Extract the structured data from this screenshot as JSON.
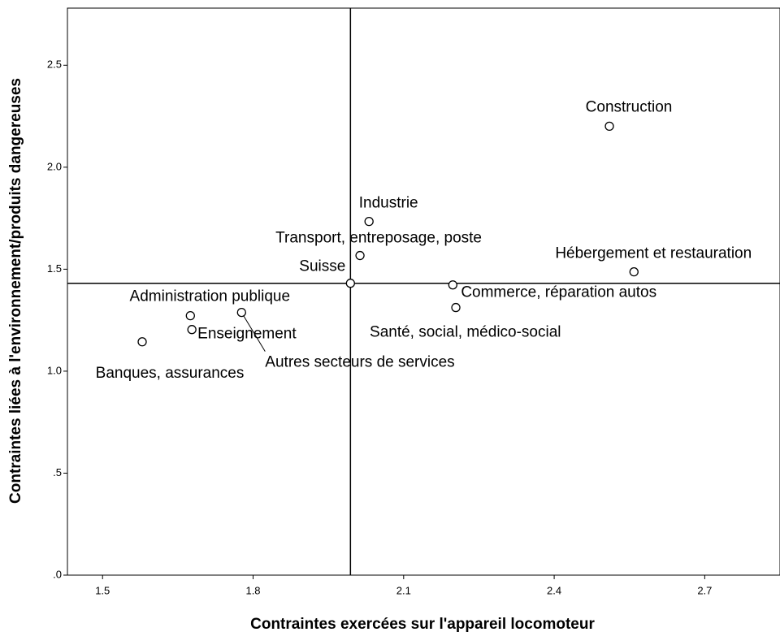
{
  "chart_data": {
    "type": "scatter",
    "x_label": "Contraintes exercées sur l'appareil locomoteur",
    "y_label": "Contraintes liées à l'environnement/produits dangereuses",
    "labels": [
      "Construction",
      "Industrie",
      "Transport, entreposage, poste",
      "Suisse",
      "Hébergement et restauration",
      "Commerce, réparation autos",
      "Santé, social, médico-social",
      "Administration publique",
      "Enseignement",
      "Autres secteurs de services",
      "Banques, assurances"
    ],
    "x": [
      2.51,
      2.031,
      2.013,
      1.994,
      2.559,
      2.198,
      2.204,
      1.675,
      1.678,
      1.777,
      1.579
    ],
    "values": [
      2.201,
      1.734,
      1.567,
      1.431,
      1.487,
      1.423,
      1.312,
      1.272,
      1.204,
      1.288,
      1.144
    ],
    "xlim": [
      1.43,
      2.85
    ],
    "ylim": [
      0,
      2.78
    ],
    "xticks": [
      1.5,
      1.8,
      2.1,
      2.4,
      2.7
    ],
    "yticks": [
      {
        "value": 0,
        "label": ".0"
      },
      {
        "value": 0.5,
        "label": ".5"
      },
      {
        "value": 1.0,
        "label": "1.0"
      },
      1.5,
      {
        "value": 2.0,
        "label": "2.0"
      },
      2.5
    ],
    "color": "#000000"
  }
}
